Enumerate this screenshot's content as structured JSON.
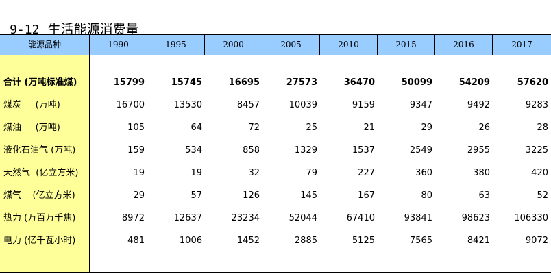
{
  "title": {
    "number": "9-12",
    "text": "生活能源消费量"
  },
  "table": {
    "corner_label": "能源品种",
    "years": [
      "1990",
      "1995",
      "2000",
      "2005",
      "2010",
      "2015",
      "2016",
      "2017"
    ],
    "rows": [
      {
        "label": "合计 (万吨标准煤)",
        "values": [
          "15799",
          "15745",
          "16695",
          "27573",
          "36470",
          "50099",
          "54209",
          "57620"
        ]
      },
      {
        "label": "煤炭     (万吨)",
        "values": [
          "16700",
          "13530",
          "8457",
          "10039",
          "9159",
          "9347",
          "9492",
          "9283"
        ]
      },
      {
        "label": "煤油     (万吨)",
        "values": [
          "105",
          "64",
          "72",
          "25",
          "21",
          "29",
          "26",
          "28"
        ]
      },
      {
        "label": "液化石油气 (万吨)",
        "values": [
          "159",
          "534",
          "858",
          "1329",
          "1537",
          "2549",
          "2955",
          "3225"
        ]
      },
      {
        "label": "天然气  (亿立方米)",
        "values": [
          "19",
          "19",
          "32",
          "79",
          "227",
          "360",
          "380",
          "420"
        ]
      },
      {
        "label": "煤气    (亿立方米)",
        "values": [
          "29",
          "57",
          "126",
          "145",
          "167",
          "80",
          "63",
          "52"
        ]
      },
      {
        "label": "热力 (万百万千焦)",
        "values": [
          "8972",
          "12637",
          "23234",
          "52044",
          "67410",
          "93841",
          "98623",
          "106330"
        ]
      },
      {
        "label": "电力 (亿千瓦小时)",
        "values": [
          "481",
          "1006",
          "1452",
          "2885",
          "5125",
          "7565",
          "8421",
          "9072"
        ]
      }
    ]
  },
  "colors": {
    "header_bg": "#99ccff",
    "first_col_bg": "#ffff99"
  }
}
